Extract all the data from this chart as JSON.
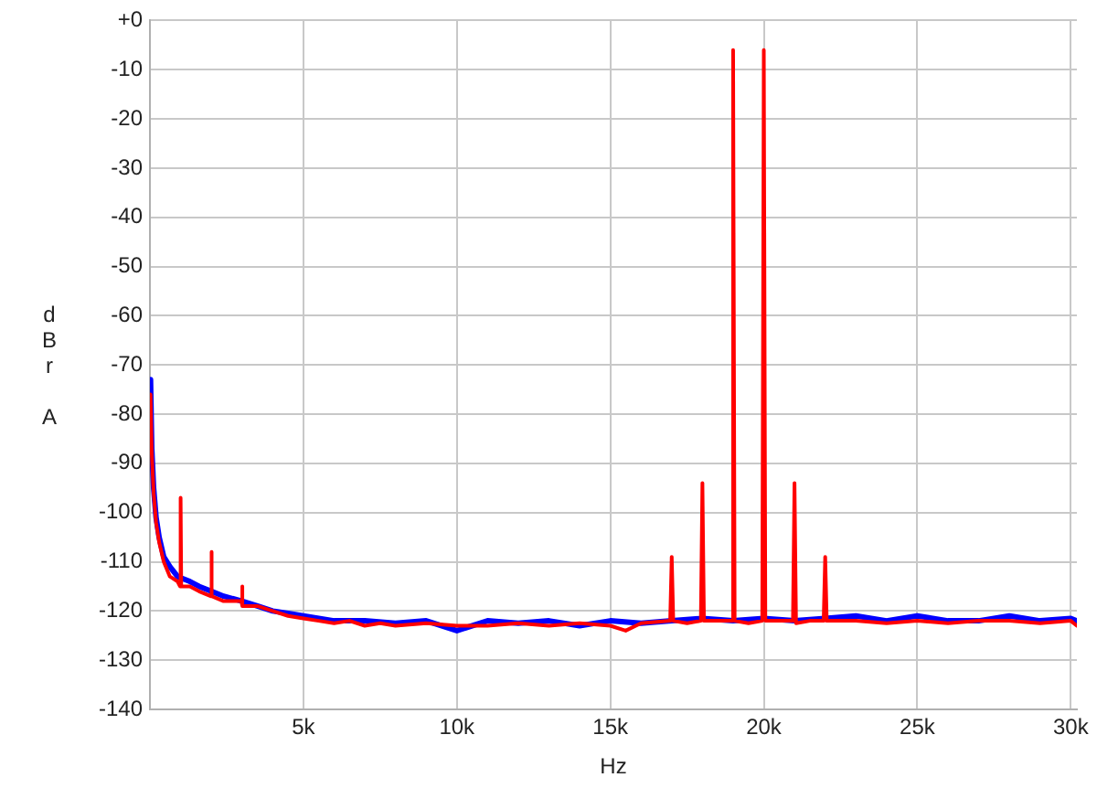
{
  "chart_data": {
    "type": "line",
    "xlabel": "Hz",
    "ylabel": "dBr A",
    "xlim": [
      0,
      30200
    ],
    "ylim": [
      -140,
      0
    ],
    "xticks": [
      {
        "value": 5000,
        "label": "5k"
      },
      {
        "value": 10000,
        "label": "10k"
      },
      {
        "value": 15000,
        "label": "15k"
      },
      {
        "value": 20000,
        "label": "20k"
      },
      {
        "value": 25000,
        "label": "25k"
      },
      {
        "value": 30000,
        "label": "30k"
      }
    ],
    "yticks": [
      {
        "value": 0,
        "label": "+0"
      },
      -10,
      -20,
      -30,
      -40,
      -50,
      -60,
      -70,
      -80,
      -90,
      -100,
      -110,
      -120,
      -130,
      -140
    ],
    "grid": true,
    "legend": false,
    "marker": "none",
    "line_style": "solid",
    "series": [
      {
        "color": "#0000ff",
        "x": [
          20,
          60,
          120,
          200,
          300,
          450,
          650,
          900,
          1300,
          1600,
          2000,
          2400,
          3000,
          3500,
          4000,
          4500,
          5000,
          5500,
          6000,
          7000,
          8000,
          9000,
          10000,
          11000,
          12000,
          13000,
          14000,
          15000,
          16000,
          17000,
          18000,
          19000,
          20000,
          21000,
          22000,
          23000,
          24000,
          25000,
          26000,
          27000,
          28000,
          29000,
          30000,
          30200
        ],
        "values": [
          -73,
          -87,
          -95,
          -101,
          -105,
          -109,
          -111,
          -113,
          -114,
          -115,
          -116,
          -117,
          -118,
          -119,
          -120,
          -120.5,
          -121,
          -121.5,
          -122,
          -122,
          -122.5,
          -122,
          -124,
          -122,
          -122.5,
          -122,
          -123,
          -122,
          -122.5,
          -122,
          -121.5,
          -122,
          -121.5,
          -122,
          -121.5,
          -121,
          -122,
          -121,
          -122,
          -122,
          -121,
          -122,
          -121.5,
          -122
        ]
      },
      {
        "color": "#ff0000",
        "x": [
          20,
          60,
          120,
          200,
          300,
          450,
          650,
          900,
          980,
          1000,
          1020,
          1300,
          1600,
          1980,
          2000,
          2020,
          2400,
          2980,
          3000,
          3020,
          3500,
          4000,
          4500,
          5000,
          5500,
          6000,
          6500,
          7000,
          7500,
          8000,
          9000,
          10000,
          11000,
          12000,
          13000,
          14000,
          15000,
          15500,
          16000,
          16950,
          17000,
          17050,
          17500,
          17950,
          18000,
          18050,
          18500,
          18950,
          19000,
          19050,
          19500,
          19950,
          20000,
          20050,
          20500,
          20950,
          21000,
          21050,
          21500,
          21950,
          22000,
          22050,
          23000,
          24000,
          25000,
          26000,
          27000,
          28000,
          29000,
          30000,
          30200
        ],
        "values": [
          -76,
          -88,
          -96,
          -102,
          -106,
          -110,
          -113,
          -114,
          -115,
          -97,
          -115,
          -115,
          -116,
          -117,
          -108,
          -117,
          -118,
          -118,
          -115,
          -119,
          -119,
          -120,
          -121,
          -121.5,
          -122,
          -122.5,
          -122,
          -123,
          -122.5,
          -123,
          -122.5,
          -123,
          -123,
          -122.5,
          -123,
          -122.5,
          -123,
          -124,
          -122.5,
          -122,
          -109,
          -122,
          -122.5,
          -122,
          -94,
          -122,
          -122,
          -122,
          -6,
          -122,
          -122.5,
          -122,
          -6,
          -122,
          -122,
          -122,
          -94,
          -122.5,
          -122,
          -122,
          -109,
          -122,
          -122,
          -122.5,
          -122,
          -122.5,
          -122,
          -122,
          -122.5,
          -122,
          -123
        ]
      }
    ]
  }
}
